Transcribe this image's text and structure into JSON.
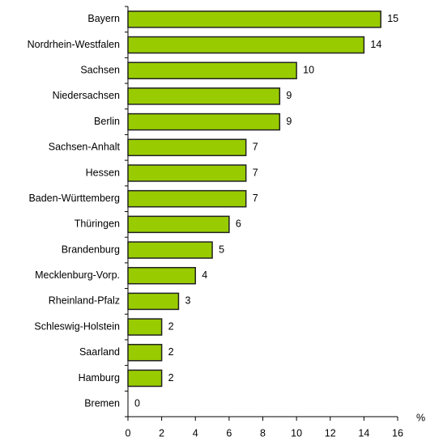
{
  "chart_data": {
    "type": "bar",
    "orientation": "horizontal",
    "categories": [
      "Bayern",
      "Nordrhein-Westfalen",
      "Sachsen",
      "Niedersachsen",
      "Berlin",
      "Sachsen-Anhalt",
      "Hessen",
      "Baden-Württemberg",
      "Thüringen",
      "Brandenburg",
      "Mecklenburg-Vorp.",
      "Rheinland-Pfalz",
      "Schleswig-Holstein",
      "Saarland",
      "Hamburg",
      "Bremen"
    ],
    "values": [
      15,
      14,
      10,
      9,
      9,
      7,
      7,
      7,
      6,
      5,
      4,
      3,
      2,
      2,
      2,
      0
    ],
    "color": "#99cc00",
    "xlabel": "%",
    "xlim": [
      0,
      16
    ],
    "xticks": [
      0,
      2,
      4,
      6,
      8,
      10,
      12,
      14,
      16
    ]
  }
}
